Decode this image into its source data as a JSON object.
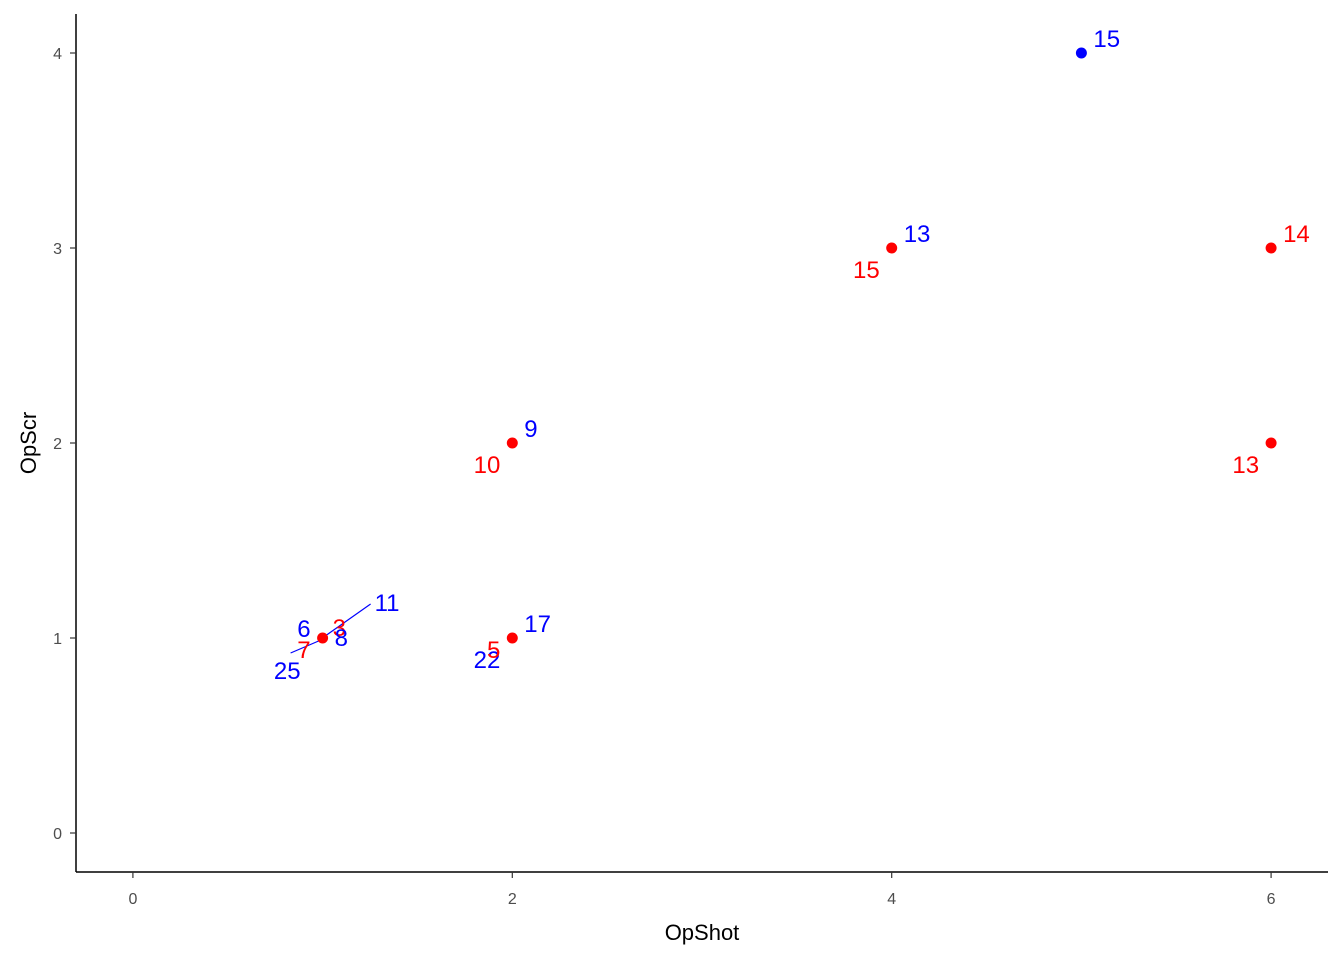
{
  "chart_data": {
    "type": "scatter",
    "title": "",
    "xlabel": "OpShot",
    "ylabel": "OpScr",
    "xlim": [
      -0.3,
      6.3
    ],
    "ylim": [
      -0.2,
      4.2
    ],
    "x_ticks": [
      0,
      2,
      4,
      6
    ],
    "y_ticks": [
      0,
      1,
      2,
      3,
      4
    ],
    "x_tick_labels": [
      "0",
      "2",
      "4",
      "6"
    ],
    "y_tick_labels": [
      "0",
      "1",
      "2",
      "3",
      "4"
    ],
    "grid": false,
    "legend": "none",
    "colors": {
      "red": "#ff0000",
      "blue": "#0000ff",
      "axis": "#000000",
      "tick_text": "#4d4d4d"
    },
    "points": [
      {
        "x": 1,
        "y": 1,
        "color": "red"
      },
      {
        "x": 2,
        "y": 1,
        "color": "red"
      },
      {
        "x": 2,
        "y": 2,
        "color": "red"
      },
      {
        "x": 4,
        "y": 3,
        "color": "red"
      },
      {
        "x": 5,
        "y": 4,
        "color": "blue"
      },
      {
        "x": 6,
        "y": 3,
        "color": "red"
      },
      {
        "x": 6,
        "y": 2,
        "color": "red"
      }
    ],
    "labels": [
      {
        "text": "15",
        "x": 5,
        "y": 4,
        "color": "blue",
        "pos": "ur"
      },
      {
        "text": "13",
        "x": 4,
        "y": 3,
        "color": "blue",
        "pos": "ur"
      },
      {
        "text": "15",
        "x": 4,
        "y": 3,
        "color": "red",
        "pos": "ll"
      },
      {
        "text": "14",
        "x": 6,
        "y": 3,
        "color": "red",
        "pos": "ur"
      },
      {
        "text": "13",
        "x": 6,
        "y": 2,
        "color": "red",
        "pos": "ll"
      },
      {
        "text": "9",
        "x": 2,
        "y": 2,
        "color": "blue",
        "pos": "ur"
      },
      {
        "text": "10",
        "x": 2,
        "y": 2,
        "color": "red",
        "pos": "ll"
      },
      {
        "text": "17",
        "x": 2,
        "y": 1,
        "color": "blue",
        "pos": "ur"
      },
      {
        "text": "22",
        "x": 2,
        "y": 1,
        "color": "blue",
        "pos": "ll"
      },
      {
        "text": "5",
        "x": 2,
        "y": 1,
        "color": "red",
        "pos": "l"
      },
      {
        "text": "11",
        "x": 1,
        "y": 1,
        "color": "blue",
        "pos": "far-ur"
      },
      {
        "text": "3",
        "x": 1,
        "y": 1,
        "color": "red",
        "pos": "r-up"
      },
      {
        "text": "8",
        "x": 1,
        "y": 1,
        "color": "blue",
        "pos": "r"
      },
      {
        "text": "6",
        "x": 1,
        "y": 1,
        "color": "blue",
        "pos": "ul"
      },
      {
        "text": "7",
        "x": 1,
        "y": 1,
        "color": "red",
        "pos": "l"
      },
      {
        "text": "25",
        "x": 1,
        "y": 1,
        "color": "blue",
        "pos": "far-ll"
      }
    ]
  }
}
